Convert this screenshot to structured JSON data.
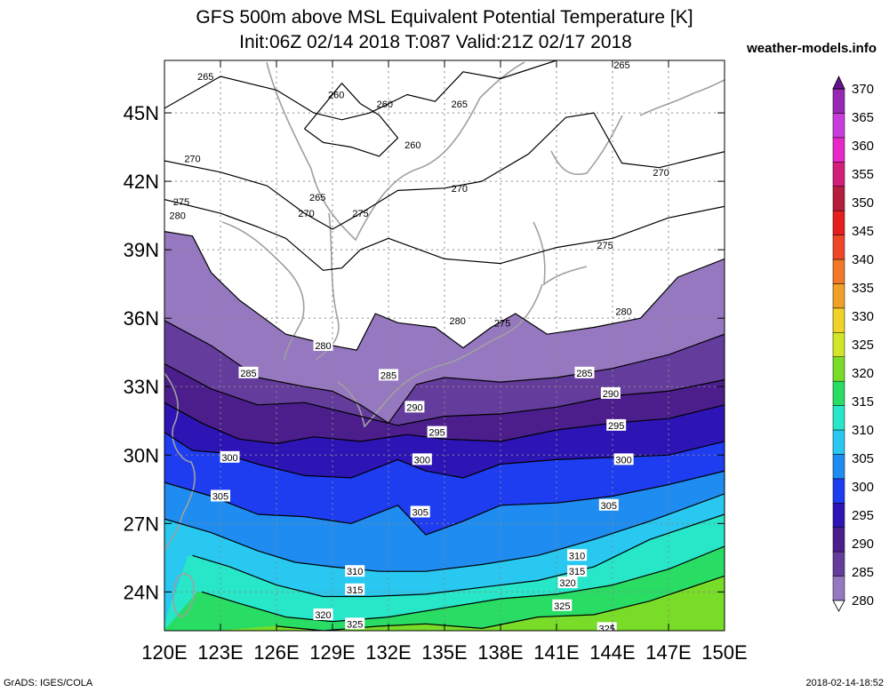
{
  "title_line1": "GFS 500m above MSL Equivalent Potential Temperature [K]",
  "title_line2": "Init:06Z 02/14 2018 T:087 Valid:21Z 02/17 2018",
  "site": "weather-models.info",
  "credit_left": "GrADS: IGES/COLA",
  "credit_right": "2018-02-14-18:52",
  "map": {
    "lon_range": [
      120,
      150
    ],
    "lat_range": [
      22.3,
      47.3
    ],
    "lat_ticks": [
      {
        "value": 24,
        "label": "24N"
      },
      {
        "value": 27,
        "label": "27N"
      },
      {
        "value": 30,
        "label": "30N"
      },
      {
        "value": 33,
        "label": "33N"
      },
      {
        "value": 36,
        "label": "36N"
      },
      {
        "value": 39,
        "label": "39N"
      },
      {
        "value": 42,
        "label": "42N"
      },
      {
        "value": 45,
        "label": "45N"
      }
    ],
    "lon_ticks": [
      {
        "value": 120,
        "label": "120E"
      },
      {
        "value": 123,
        "label": "123E"
      },
      {
        "value": 126,
        "label": "126E"
      },
      {
        "value": 129,
        "label": "129E"
      },
      {
        "value": 132,
        "label": "132E"
      },
      {
        "value": 135,
        "label": "135E"
      },
      {
        "value": 138,
        "label": "138E"
      },
      {
        "value": 141,
        "label": "141E"
      },
      {
        "value": 144,
        "label": "144E"
      },
      {
        "value": 147,
        "label": "147E"
      },
      {
        "value": 150,
        "label": "150E"
      }
    ],
    "contours": [
      {
        "level": 265,
        "points": [
          [
            120,
            45.2
          ],
          [
            123,
            46.6
          ],
          [
            126,
            46.0
          ],
          [
            128,
            45.0
          ],
          [
            129.5,
            44.7
          ],
          [
            131,
            45.0
          ],
          [
            133,
            45.8
          ],
          [
            134.5,
            45.5
          ],
          [
            136,
            46.8
          ],
          [
            138,
            46.5
          ],
          [
            141,
            47.3
          ]
        ]
      },
      {
        "level": 260,
        "points": [
          [
            127.5,
            44.3
          ],
          [
            128.5,
            45.3
          ],
          [
            129.5,
            46.3
          ],
          [
            130.5,
            45.4
          ],
          [
            131.5,
            44.9
          ],
          [
            132.5,
            43.9
          ],
          [
            131.5,
            43.1
          ],
          [
            130,
            43.5
          ],
          [
            128.5,
            43.7
          ],
          [
            127.5,
            44.3
          ]
        ]
      },
      {
        "level": 270,
        "points": [
          [
            120,
            42.9
          ],
          [
            123,
            42.4
          ],
          [
            125.5,
            41.8
          ],
          [
            127.5,
            40.6
          ],
          [
            129,
            39.9
          ],
          [
            130.5,
            40.6
          ],
          [
            132.5,
            41.6
          ],
          [
            135,
            41.7
          ],
          [
            137,
            42.0
          ],
          [
            139.5,
            43.2
          ],
          [
            141.5,
            44.8
          ],
          [
            143,
            45.0
          ],
          [
            144.5,
            42.8
          ],
          [
            146.5,
            42.6
          ],
          [
            150,
            43.3
          ]
        ]
      },
      {
        "level": 275,
        "points": [
          [
            120,
            41.2
          ],
          [
            123,
            40.6
          ],
          [
            125,
            40.0
          ],
          [
            126.5,
            39.5
          ],
          [
            128.5,
            38.1
          ],
          [
            129.5,
            38.2
          ],
          [
            130.5,
            39.0
          ],
          [
            132,
            39.5
          ],
          [
            135,
            38.6
          ],
          [
            138,
            38.4
          ],
          [
            141,
            39.1
          ],
          [
            144,
            39.5
          ],
          [
            147,
            40.4
          ],
          [
            150,
            40.9
          ]
        ]
      },
      {
        "level": 280,
        "points": [
          [
            120,
            39.8
          ],
          [
            121.5,
            39.6
          ],
          [
            122.5,
            38.0
          ],
          [
            124,
            36.8
          ],
          [
            126.5,
            35.3
          ],
          [
            129,
            34.8
          ],
          [
            130.3,
            34.6
          ],
          [
            131.3,
            36.2
          ],
          [
            132.5,
            35.8
          ],
          [
            134.5,
            35.6
          ],
          [
            136,
            34.7
          ],
          [
            137.5,
            35.6
          ],
          [
            138.8,
            36.2
          ],
          [
            140.5,
            35.3
          ],
          [
            143,
            35.6
          ],
          [
            145.5,
            36.0
          ],
          [
            147.5,
            37.8
          ],
          [
            150,
            38.6
          ]
        ]
      },
      {
        "level": 285,
        "points": [
          [
            120,
            35.9
          ],
          [
            122.5,
            34.8
          ],
          [
            125,
            33.4
          ],
          [
            127.5,
            33.0
          ],
          [
            129,
            32.8
          ],
          [
            130.5,
            32.2
          ],
          [
            132,
            31.4
          ],
          [
            133.5,
            33.1
          ],
          [
            135,
            33.4
          ],
          [
            138,
            33.2
          ],
          [
            141,
            33.4
          ],
          [
            144,
            33.8
          ],
          [
            147,
            34.4
          ],
          [
            150,
            35.3
          ]
        ]
      },
      {
        "level": 290,
        "points": [
          [
            120,
            34.0
          ],
          [
            122.5,
            32.9
          ],
          [
            125,
            32.2
          ],
          [
            127.5,
            32.3
          ],
          [
            130,
            31.8
          ],
          [
            132.5,
            31.3
          ],
          [
            135,
            31.7
          ],
          [
            138,
            31.8
          ],
          [
            141,
            32.1
          ],
          [
            144,
            32.6
          ],
          [
            147,
            32.8
          ],
          [
            150,
            33.3
          ]
        ]
      },
      {
        "level": 295,
        "points": [
          [
            120,
            32.3
          ],
          [
            122,
            31.4
          ],
          [
            124,
            30.7
          ],
          [
            126,
            30.5
          ],
          [
            128,
            30.8
          ],
          [
            130.5,
            30.6
          ],
          [
            133,
            30.9
          ],
          [
            135,
            30.7
          ],
          [
            138,
            30.6
          ],
          [
            141,
            31.1
          ],
          [
            144,
            31.4
          ],
          [
            147,
            31.6
          ],
          [
            150,
            32.2
          ]
        ]
      },
      {
        "level": 300,
        "points": [
          [
            120,
            31.0
          ],
          [
            121.5,
            30.2
          ],
          [
            123,
            30.1
          ],
          [
            125,
            29.6
          ],
          [
            127.5,
            29.1
          ],
          [
            130,
            29.0
          ],
          [
            132.5,
            29.8
          ],
          [
            134,
            29.3
          ],
          [
            136,
            29.0
          ],
          [
            138,
            29.6
          ],
          [
            141,
            29.8
          ],
          [
            144,
            29.9
          ],
          [
            147,
            30.0
          ],
          [
            150,
            30.6
          ]
        ]
      },
      {
        "level": 305,
        "points": [
          [
            120,
            28.8
          ],
          [
            122.5,
            28.2
          ],
          [
            125,
            27.4
          ],
          [
            127.5,
            27.3
          ],
          [
            130,
            27.0
          ],
          [
            132.5,
            27.8
          ],
          [
            134,
            26.5
          ],
          [
            136,
            27.1
          ],
          [
            138,
            27.8
          ],
          [
            141,
            27.9
          ],
          [
            144,
            28.2
          ],
          [
            147,
            28.7
          ],
          [
            150,
            29.3
          ]
        ]
      },
      {
        "level": 310,
        "points": [
          [
            120,
            27.2
          ],
          [
            122.5,
            26.6
          ],
          [
            125,
            25.8
          ],
          [
            127,
            25.3
          ],
          [
            129,
            25.1
          ],
          [
            131.5,
            24.9
          ],
          [
            134,
            24.9
          ],
          [
            137,
            25.2
          ],
          [
            140,
            25.6
          ],
          [
            143,
            26.3
          ],
          [
            146,
            27.1
          ],
          [
            150,
            28.3
          ]
        ]
      },
      {
        "level": 315,
        "points": [
          [
            121.5,
            25.6
          ],
          [
            123.5,
            25.1
          ],
          [
            126,
            24.3
          ],
          [
            128.5,
            23.8
          ],
          [
            131,
            23.8
          ],
          [
            134,
            23.9
          ],
          [
            137,
            24.2
          ],
          [
            140,
            24.5
          ],
          [
            143,
            25.1
          ],
          [
            146,
            26.3
          ],
          [
            150,
            27.4
          ]
        ]
      },
      {
        "level": 320,
        "points": [
          [
            122,
            24.0
          ],
          [
            124,
            23.5
          ],
          [
            126.5,
            22.9
          ],
          [
            129,
            22.7
          ],
          [
            132,
            22.9
          ],
          [
            135,
            23.3
          ],
          [
            138,
            23.7
          ],
          [
            141,
            23.9
          ],
          [
            144,
            24.3
          ],
          [
            147,
            25.0
          ],
          [
            150,
            26.0
          ]
        ]
      },
      {
        "level": 325,
        "points": [
          [
            126,
            22.5
          ],
          [
            128.5,
            22.3
          ],
          [
            131.5,
            22.5
          ],
          [
            134,
            22.6
          ],
          [
            137,
            22.4
          ],
          [
            140,
            22.9
          ],
          [
            143,
            23.0
          ],
          [
            146,
            23.6
          ],
          [
            150,
            24.7
          ]
        ]
      }
    ],
    "contour_labels": [
      {
        "level": 265,
        "lon": 122.2,
        "lat": 46.6,
        "text": "265"
      },
      {
        "level": 260,
        "lon": 129.2,
        "lat": 45.8,
        "text": "260"
      },
      {
        "level": 260,
        "lon": 131.8,
        "lat": 45.4,
        "text": "260"
      },
      {
        "level": 265,
        "lon": 135.8,
        "lat": 45.4,
        "text": "265"
      },
      {
        "level": 265,
        "lon": 144.5,
        "lat": 47.1,
        "text": "265"
      },
      {
        "level": 260,
        "lon": 133.3,
        "lat": 43.6,
        "text": "260"
      },
      {
        "level": 270,
        "lon": 121.5,
        "lat": 43.0,
        "text": "270"
      },
      {
        "level": 270,
        "lon": 135.8,
        "lat": 41.7,
        "text": "270"
      },
      {
        "level": 270,
        "lon": 146.6,
        "lat": 42.4,
        "text": "270"
      },
      {
        "level": 265,
        "lon": 128.2,
        "lat": 41.3,
        "text": "265"
      },
      {
        "level": 270,
        "lon": 127.6,
        "lat": 40.6,
        "text": "270"
      },
      {
        "level": 275,
        "lon": 120.9,
        "lat": 41.1,
        "text": "275"
      },
      {
        "level": 275,
        "lon": 130.5,
        "lat": 40.6,
        "text": "275"
      },
      {
        "level": 275,
        "lon": 143.6,
        "lat": 39.2,
        "text": "275"
      },
      {
        "level": 280,
        "lon": 120.7,
        "lat": 40.5,
        "text": "280"
      },
      {
        "level": 280,
        "lon": 135.7,
        "lat": 35.9,
        "text": "280"
      },
      {
        "level": 280,
        "lon": 144.6,
        "lat": 36.3,
        "text": "280"
      },
      {
        "level": 275,
        "lon": 138.1,
        "lat": 35.8,
        "text": "275"
      },
      {
        "level": 280,
        "lon": 128.5,
        "lat": 34.8,
        "text": "280"
      },
      {
        "level": 285,
        "lon": 124.5,
        "lat": 33.6,
        "text": "285"
      },
      {
        "level": 285,
        "lon": 132.0,
        "lat": 33.5,
        "text": "285"
      },
      {
        "level": 285,
        "lon": 142.5,
        "lat": 33.6,
        "text": "285"
      },
      {
        "level": 290,
        "lon": 133.4,
        "lat": 32.1,
        "text": "290"
      },
      {
        "level": 290,
        "lon": 143.9,
        "lat": 32.7,
        "text": "290"
      },
      {
        "level": 295,
        "lon": 134.6,
        "lat": 31.0,
        "text": "295"
      },
      {
        "level": 295,
        "lon": 144.2,
        "lat": 31.3,
        "text": "295"
      },
      {
        "level": 300,
        "lon": 123.5,
        "lat": 29.9,
        "text": "300"
      },
      {
        "level": 300,
        "lon": 133.8,
        "lat": 29.8,
        "text": "300"
      },
      {
        "level": 300,
        "lon": 144.6,
        "lat": 29.8,
        "text": "300"
      },
      {
        "level": 305,
        "lon": 123.0,
        "lat": 28.2,
        "text": "305"
      },
      {
        "level": 305,
        "lon": 133.7,
        "lat": 27.5,
        "text": "305"
      },
      {
        "level": 305,
        "lon": 143.8,
        "lat": 27.8,
        "text": "305"
      },
      {
        "level": 310,
        "lon": 130.2,
        "lat": 24.9,
        "text": "310"
      },
      {
        "level": 310,
        "lon": 142.1,
        "lat": 25.6,
        "text": "310"
      },
      {
        "level": 315,
        "lon": 130.2,
        "lat": 24.1,
        "text": "315"
      },
      {
        "level": 315,
        "lon": 142.1,
        "lat": 24.9,
        "text": "315"
      },
      {
        "level": 320,
        "lon": 128.5,
        "lat": 23.0,
        "text": "320"
      },
      {
        "level": 320,
        "lon": 141.6,
        "lat": 24.4,
        "text": "320"
      },
      {
        "level": 325,
        "lon": 130.2,
        "lat": 22.6,
        "text": "325"
      },
      {
        "level": 325,
        "lon": 141.3,
        "lat": 23.4,
        "text": "325"
      },
      {
        "level": 325,
        "lon": 143.7,
        "lat": 22.4,
        "text": "325"
      }
    ]
  },
  "legend": {
    "levels": [
      280,
      285,
      290,
      295,
      300,
      305,
      310,
      315,
      320,
      325,
      330,
      335,
      340,
      345,
      350,
      355,
      360,
      365,
      370
    ],
    "colors": [
      "#c8b4dc",
      "#9678c0",
      "#643c9c",
      "#4b1e8c",
      "#2d14b4",
      "#1e3cf0",
      "#1e8cf0",
      "#28c8f0",
      "#28e6c8",
      "#28dc64",
      "#78dc28",
      "#d2e628",
      "#f0d228",
      "#f0a028",
      "#f07828",
      "#f04628",
      "#e61e1e",
      "#b41e3c",
      "#d21e78",
      "#e628c8",
      "#c83cdc",
      "#9628b4",
      "#64148c"
    ],
    "labels": [
      "280",
      "285",
      "290",
      "295",
      "300",
      "305",
      "310",
      "315",
      "320",
      "325",
      "330",
      "335",
      "340",
      "345",
      "350",
      "355",
      "360",
      "365",
      "370"
    ]
  }
}
